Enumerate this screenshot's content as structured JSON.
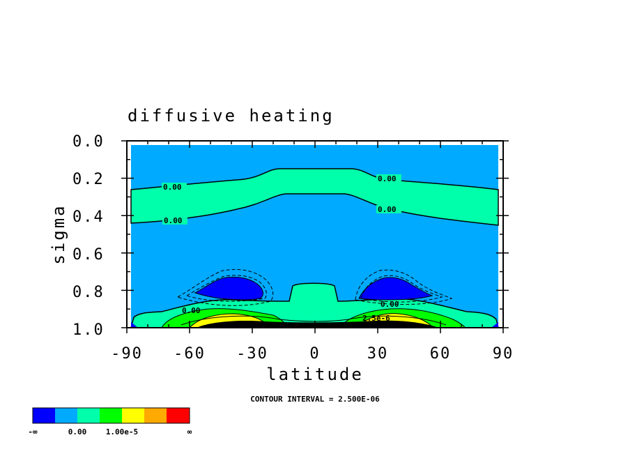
{
  "chart_data": {
    "type": "contour",
    "title": "diffusive heating",
    "xlabel": "latitude",
    "ylabel": "sigma",
    "xlim": [
      -90,
      90
    ],
    "ylim": [
      1.0,
      0.0
    ],
    "xticks": [
      "-90",
      "-60",
      "-30",
      "0",
      "30",
      "60",
      "90"
    ],
    "yticks": [
      "0.0",
      "0.2",
      "0.4",
      "0.6",
      "0.8",
      "1.0"
    ],
    "contour_interval_text": "CONTOUR INTERVAL = 2.500E-06",
    "contour_labels": [
      "0.00",
      "0.00",
      "0.00",
      "0.00",
      "0.00",
      "0.00",
      "2.5e-6"
    ],
    "colorbar": {
      "colors": [
        "#0000ff",
        "#00aaff",
        "#00ffaa",
        "#00ff00",
        "#ffff00",
        "#ffaa00",
        "#ff0000"
      ],
      "labels": [
        "-∞",
        "0.00",
        "1.00e-5",
        "∞"
      ]
    }
  }
}
